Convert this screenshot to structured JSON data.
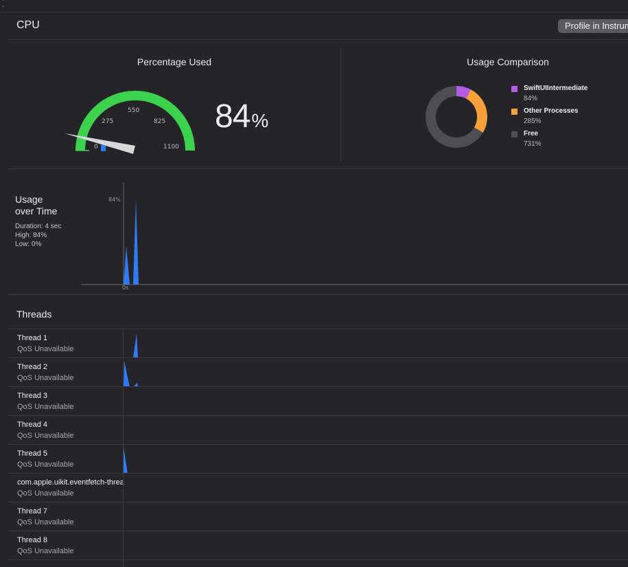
{
  "header": {
    "title": "CPU",
    "profile_button_label": "Profile in Instruments"
  },
  "percentage_used": {
    "title": "Percentage Used",
    "value": "84",
    "unit": "%",
    "gauge_ticks": [
      "0",
      "275",
      "550",
      "825",
      "1100"
    ],
    "gauge_max": 1100,
    "gauge_value": 84
  },
  "usage_comparison": {
    "title": "Usage Comparison",
    "legend": [
      {
        "name": "SwiftUIIntermediate",
        "value": "84%",
        "color": "#b45be8"
      },
      {
        "name": "Other Processes",
        "value": "285%",
        "color": "#f5a03a"
      },
      {
        "name": "Free",
        "value": "731%",
        "color": "#4e4e50"
      }
    ],
    "slices": [
      84,
      285,
      731
    ]
  },
  "usage_over_time": {
    "title_line1": "Usage",
    "title_line2": "over Time",
    "duration": "Duration: 4 sec",
    "high": "High: 84%",
    "low": "Low: 0%",
    "y_label": "84%",
    "x_label": "0s"
  },
  "threads": {
    "title": "Threads",
    "items": [
      {
        "name": "Thread 1",
        "qos": "QoS Unavailable"
      },
      {
        "name": "Thread 2",
        "qos": "QoS Unavailable"
      },
      {
        "name": "Thread 3",
        "qos": "QoS Unavailable"
      },
      {
        "name": "Thread 4",
        "qos": "QoS Unavailable"
      },
      {
        "name": "Thread 5",
        "qos": "QoS Unavailable"
      },
      {
        "name": "com.apple.uikit.eventfetch-thread",
        "qos": "QoS Unavailable"
      },
      {
        "name": "Thread 7",
        "qos": "QoS Unavailable"
      },
      {
        "name": "Thread 8",
        "qos": "QoS Unavailable"
      }
    ]
  },
  "colors": {
    "background": "#252428",
    "gauge_green": "#3dd24e",
    "graph_blue": "#2f7cf6",
    "divider": "#3a393d"
  }
}
